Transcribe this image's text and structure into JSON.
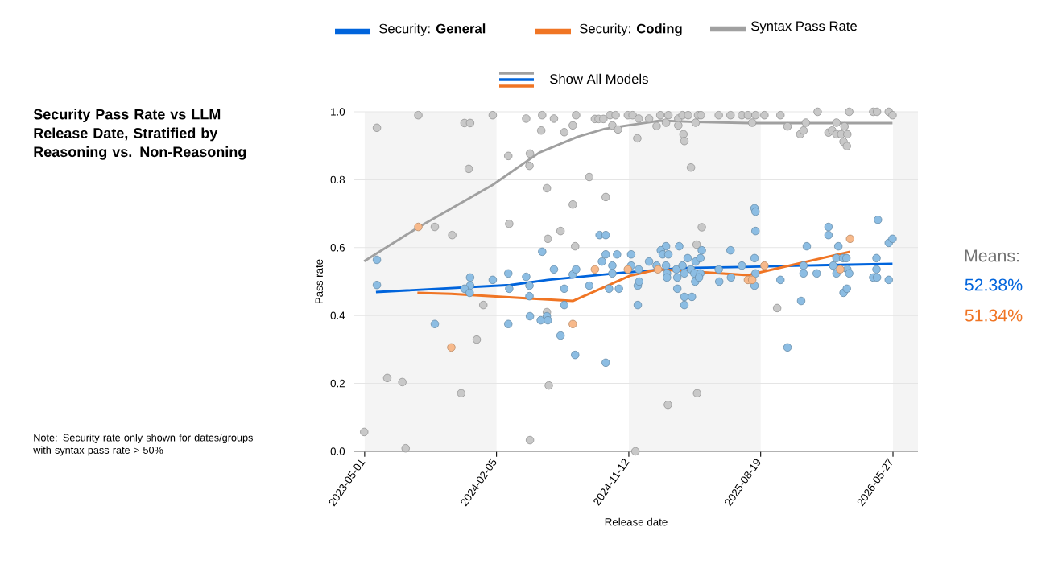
{
  "chart_data": {
    "type": "scatter",
    "title": "Security Pass Rate vs LLM Release Date, Stratified by Reasoning vs. Non-Reasoning",
    "xlabel": "Release date",
    "ylabel": "Pass rate",
    "annotations": [
      "Show All Models",
      "Means:",
      "52.38%",
      "51.34%",
      "Note: Security rate only shown for dates/groups with syntax pass rate > 50%"
    ],
    "xlim": [
      "2023-04-09",
      "2026-07-19"
    ],
    "xticks": [
      "2023-05-01",
      "2024-02-05",
      "2024-11-12",
      "2025-08-19",
      "2026-05-27"
    ],
    "ylim": [
      0,
      1
    ],
    "yticks": [
      {
        "value": 0,
        "label": "0.0"
      },
      {
        "value": 0.2,
        "label": "0.2"
      },
      {
        "value": 0.4,
        "label": "0.4"
      },
      {
        "value": 0.6,
        "label": "0.6"
      },
      {
        "value": 0.8,
        "label": "0.8"
      },
      {
        "value": 1,
        "label": "1.0"
      }
    ],
    "grid": "y",
    "legend": "top",
    "marker": "circle",
    "bands": [
      {
        "axis": "x",
        "from": "2023-05-01",
        "to": "2024-02-05",
        "color": "#f4f4f4"
      },
      {
        "axis": "x",
        "from": "2024-11-12",
        "to": "2025-08-19",
        "color": "#f4f4f4"
      },
      {
        "axis": "x",
        "from": "2026-05-27",
        "to": "2026-07-19",
        "color": "#f4f4f4"
      }
    ],
    "series": [
      {
        "color": "#c8c8c8",
        "x": [
          "2023-04-30",
          "2023-05-27",
          "2023-06-18",
          "2023-07-20",
          "2023-07-27",
          "2023-08-23",
          "2023-09-27",
          "2023-11-03",
          "2023-11-22",
          "2023-11-29",
          "2023-12-11",
          "2023-12-08",
          "2023-12-25",
          "2024-01-08",
          "2024-01-28",
          "2024-03-01",
          "2024-03-03",
          "2024-04-08",
          "2024-04-16",
          "2024-04-15",
          "2024-04-16",
          "2024-05-10",
          "2024-05-12",
          "2024-05-22",
          "2024-05-26",
          "2024-05-22",
          "2024-05-24",
          "2024-06-06",
          "2024-06-20",
          "2024-06-28",
          "2024-07-16",
          "2024-07-23",
          "2024-07-16",
          "2024-07-21",
          "2024-08-20",
          "2024-09-01",
          "2024-09-09",
          "2024-09-19",
          "2024-09-24",
          "2024-10-03",
          "2024-10-08",
          "2024-10-15",
          "2024-10-20",
          "2024-11-10",
          "2024-11-20",
          "2024-11-30",
          "2024-12-03",
          "2024-11-26",
          "2024-12-25",
          "2025-01-10",
          "2025-01-18",
          "2025-02-04",
          "2025-01-30",
          "2025-02-25",
          "2025-02-25",
          "2025-03-06",
          "2025-03-18",
          "2025-04-03",
          "2025-04-08",
          "2025-04-14",
          "2025-05-22",
          "2025-06-16",
          "2025-07-10",
          "2025-07-23",
          "2025-08-08",
          "2025-08-01",
          "2025-08-27",
          "2025-09-30",
          "2025-10-15",
          "2025-11-11",
          "2025-11-18",
          "2025-11-23",
          "2025-12-18",
          "2026-01-10",
          "2026-01-18",
          "2026-01-27",
          "2026-01-27",
          "2026-02-06",
          "2026-02-19",
          "2026-02-13",
          "2026-02-11",
          "2026-02-18",
          "2026-02-23",
          "2026-04-15",
          "2026-04-23",
          "2026-05-18",
          "2026-05-26",
          "2025-03-08",
          "2025-03-10",
          "2025-03-24",
          "2025-04-16",
          "2025-04-05",
          "2025-09-23",
          "2025-04-06",
          "2025-02-03"
        ],
        "values": [
          0.057,
          0.953,
          0.216,
          0.204,
          0.009,
          0.99,
          0.661,
          0.637,
          0.171,
          0.967,
          0.967,
          0.832,
          0.329,
          0.431,
          0.99,
          0.87,
          0.67,
          0.98,
          0.877,
          0.841,
          0.033,
          0.945,
          0.99,
          0.775,
          0.194,
          0.41,
          0.626,
          0.98,
          0.649,
          0.94,
          0.96,
          0.99,
          0.727,
          0.604,
          0.808,
          0.979,
          0.979,
          0.979,
          0.749,
          0.99,
          0.96,
          0.99,
          0.948,
          0.99,
          0.99,
          0.922,
          0.98,
          0.0,
          0.98,
          0.958,
          0.99,
          0.99,
          0.968,
          0.98,
          0.96,
          0.99,
          0.99,
          0.968,
          0.99,
          0.99,
          0.99,
          0.99,
          0.99,
          0.99,
          0.99,
          0.968,
          0.99,
          0.99,
          0.957,
          0.934,
          0.945,
          0.968,
          1.0,
          0.939,
          0.945,
          0.968,
          0.934,
          0.934,
          0.934,
          0.957,
          0.912,
          0.899,
          1.0,
          1.0,
          1.0,
          1.0,
          0.99,
          0.934,
          0.914,
          0.836,
          0.66,
          0.609,
          0.422,
          0.171,
          0.137
        ]
      },
      {
        "color": "#8cbde3",
        "x": [
          "2023-05-27",
          "2023-05-27",
          "2023-09-27",
          "2023-12-11",
          "2023-12-11",
          "2023-11-29",
          "2023-12-10",
          "2024-01-28",
          "2024-03-01",
          "2024-03-01",
          "2024-03-03",
          "2024-04-08",
          "2024-04-15",
          "2024-04-15",
          "2024-04-16",
          "2024-05-12",
          "2024-05-09",
          "2024-05-22",
          "2024-05-24",
          "2024-06-06",
          "2024-06-20",
          "2024-06-28",
          "2024-06-28",
          "2024-07-16",
          "2024-07-23",
          "2024-07-21",
          "2024-08-20",
          "2024-09-11",
          "2024-09-24",
          "2024-09-16",
          "2024-09-24",
          "2024-10-18",
          "2024-10-08",
          "2024-10-08",
          "2024-10-01",
          "2024-10-22",
          "2024-09-24",
          "2024-11-17",
          "2024-11-17",
          "2024-12-01",
          "2024-12-04",
          "2024-12-01",
          "2024-12-03",
          "2024-12-25",
          "2025-01-10",
          "2025-01-30",
          "2025-01-19",
          "2025-01-23",
          "2025-02-04",
          "2025-01-30",
          "2025-02-01",
          "2025-02-01",
          "2025-02-27",
          "2025-02-23",
          "2025-02-23",
          "2025-02-21",
          "2025-03-06",
          "2025-03-10",
          "2025-03-10",
          "2025-03-10",
          "2025-03-26",
          "2025-03-17",
          "2025-03-24",
          "2025-03-31",
          "2025-04-02",
          "2025-04-03",
          "2025-04-13",
          "2025-04-16",
          "2025-04-13",
          "2025-04-10",
          "2025-05-22",
          "2025-05-23",
          "2025-06-16",
          "2025-06-17",
          "2025-07-10",
          "2025-08-06",
          "2025-08-08",
          "2025-08-08",
          "2025-08-06",
          "2025-08-08",
          "2025-08-06",
          "2025-09-30",
          "2025-10-15",
          "2025-11-13",
          "2025-11-18",
          "2025-11-18",
          "2025-11-25",
          "2025-12-16",
          "2026-01-10",
          "2026-01-10",
          "2026-01-20",
          "2026-01-27",
          "2026-01-27",
          "2026-01-31",
          "2026-02-10",
          "2026-02-17",
          "2026-02-19",
          "2026-02-23",
          "2026-02-11",
          "2026-02-18",
          "2026-04-15",
          "2026-04-23",
          "2026-04-22",
          "2026-04-22",
          "2026-04-25",
          "2026-05-18",
          "2026-05-26",
          "2026-05-18"
        ],
        "values": [
          0.564,
          0.49,
          0.375,
          0.512,
          0.488,
          0.479,
          0.467,
          0.505,
          0.524,
          0.375,
          0.479,
          0.514,
          0.488,
          0.457,
          0.398,
          0.588,
          0.386,
          0.398,
          0.386,
          0.536,
          0.341,
          0.479,
          0.431,
          0.521,
          0.536,
          0.284,
          0.488,
          0.637,
          0.637,
          0.559,
          0.58,
          0.58,
          0.547,
          0.524,
          0.479,
          0.479,
          0.261,
          0.58,
          0.547,
          0.488,
          0.5,
          0.431,
          0.536,
          0.559,
          0.547,
          0.604,
          0.592,
          0.58,
          0.58,
          0.547,
          0.524,
          0.512,
          0.604,
          0.512,
          0.479,
          0.536,
          0.547,
          0.524,
          0.455,
          0.431,
          0.455,
          0.569,
          0.536,
          0.524,
          0.5,
          0.559,
          0.569,
          0.592,
          0.524,
          0.512,
          0.536,
          0.5,
          0.592,
          0.512,
          0.547,
          0.716,
          0.706,
          0.649,
          0.569,
          0.524,
          0.488,
          0.505,
          0.306,
          0.443,
          0.547,
          0.524,
          0.604,
          0.524,
          0.661,
          0.637,
          0.547,
          0.569,
          0.524,
          0.604,
          0.569,
          0.569,
          0.536,
          0.524,
          0.467,
          0.479,
          0.512,
          0.512,
          0.569,
          0.536,
          0.682,
          0.614,
          0.626,
          0.505
        ]
      },
      {
        "color": "#f7b98b",
        "x": [
          "2023-08-23",
          "2023-11-01",
          "2024-07-16",
          "2024-09-01",
          "2024-11-10",
          "2025-01-13",
          "2025-07-23",
          "2025-08-01",
          "2025-08-27",
          "2026-02-04",
          "2026-02-25"
        ],
        "values": [
          0.661,
          0.306,
          0.375,
          0.536,
          0.536,
          0.536,
          0.505,
          0.505,
          0.547,
          0.536,
          0.626
        ]
      },
      {
        "type": "line",
        "marker": "none",
        "name": "Security: **General**",
        "color": "#0064dc",
        "x": [
          "2023-05-25",
          "2024-03-05",
          "2024-05-24",
          "2024-11-14",
          "2025-03-06",
          "2025-07-10",
          "2025-11-18",
          "2026-05-26"
        ],
        "values": [
          0.469,
          0.49,
          0.505,
          0.528,
          0.54,
          0.543,
          0.547,
          0.552
        ]
      },
      {
        "type": "line",
        "marker": "none",
        "name": "Security: **Coding**",
        "color": "#f07524",
        "x": [
          "2023-08-21",
          "2023-11-01",
          "2024-04-15",
          "2024-07-16",
          "2024-11-14",
          "2025-01-13",
          "2025-07-23",
          "2026-02-25"
        ],
        "values": [
          0.467,
          0.464,
          0.45,
          0.443,
          0.517,
          0.536,
          0.519,
          0.588
        ]
      },
      {
        "type": "line",
        "marker": "none",
        "name": "Syntax Pass Rate",
        "color": "#a0a0a0",
        "x": [
          "2023-04-30",
          "2023-08-23",
          "2024-01-28",
          "2024-05-06",
          "2024-07-27",
          "2024-09-22",
          "2024-12-15",
          "2025-01-18",
          "2025-04-03",
          "2025-07-26",
          "2025-12-17",
          "2026-05-26"
        ],
        "values": [
          0.56,
          0.66,
          0.785,
          0.88,
          0.927,
          0.95,
          0.967,
          0.974,
          0.97,
          0.967,
          0.967,
          0.967
        ]
      }
    ]
  }
}
